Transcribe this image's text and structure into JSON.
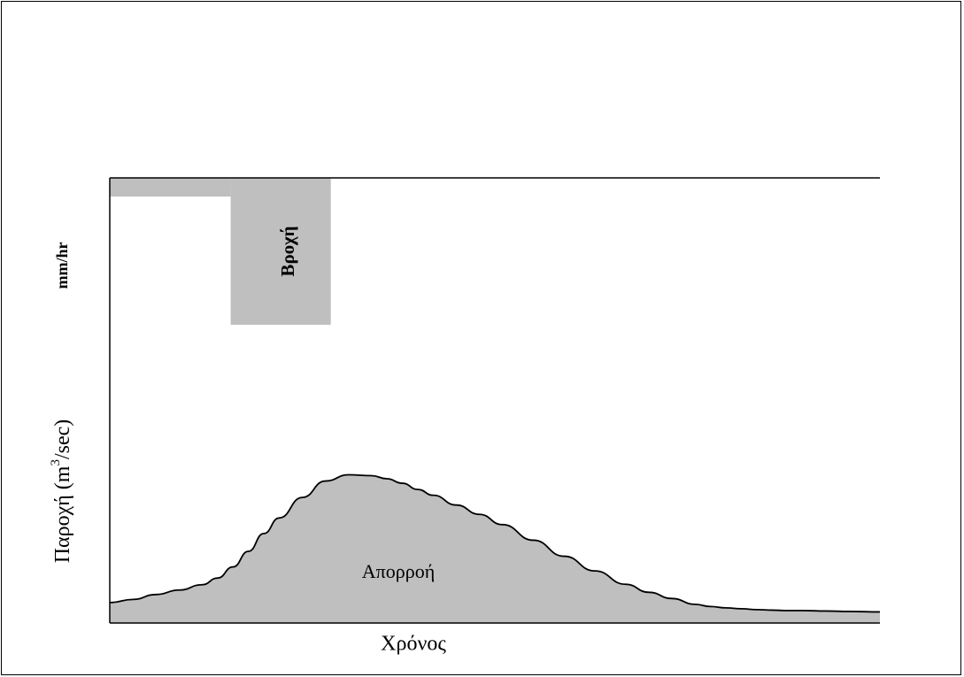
{
  "chart_data": {
    "type": "area",
    "title": "",
    "xlabel": "Χρόνος",
    "rain_axis_label": "mm/hr",
    "ylabel": {
      "base": "Παροχή (m",
      "sup": "3",
      "tail": "/sec)"
    },
    "x_range": [
      0,
      100
    ],
    "y_range": [
      0,
      100
    ],
    "rain_series": {
      "name": "Βροχή",
      "steps": [
        {
          "x0": 0,
          "x1": 15.7,
          "intensity": 4.2
        },
        {
          "x0": 15.7,
          "x1": 28.7,
          "intensity": 33
        }
      ]
    },
    "runoff_series": {
      "name": "Απορροή",
      "x": [
        0,
        3,
        6,
        9,
        12,
        14,
        16,
        18,
        20,
        22,
        25,
        28,
        31,
        34,
        36,
        38,
        40,
        42,
        45,
        48,
        51,
        55,
        59,
        63,
        67,
        70,
        73,
        76,
        78,
        80,
        82,
        84,
        86,
        88,
        90,
        93,
        96,
        100
      ],
      "y": [
        4.6,
        5.3,
        6.4,
        7.4,
        8.6,
        10.1,
        12.6,
        16.1,
        20.1,
        23.6,
        28.2,
        31.9,
        33.3,
        33.1,
        32.4,
        31.4,
        30.0,
        28.7,
        26.5,
        24.4,
        22.1,
        18.6,
        15.0,
        11.7,
        8.7,
        6.9,
        5.5,
        4.2,
        3.7,
        3.4,
        3.2,
        3.0,
        2.9,
        2.8,
        2.8,
        2.7,
        2.6,
        2.5
      ]
    },
    "grid": false,
    "legend": "none"
  },
  "colors": {
    "fill": "#bfbfbf",
    "line": "#000000",
    "background": "#ffffff"
  }
}
